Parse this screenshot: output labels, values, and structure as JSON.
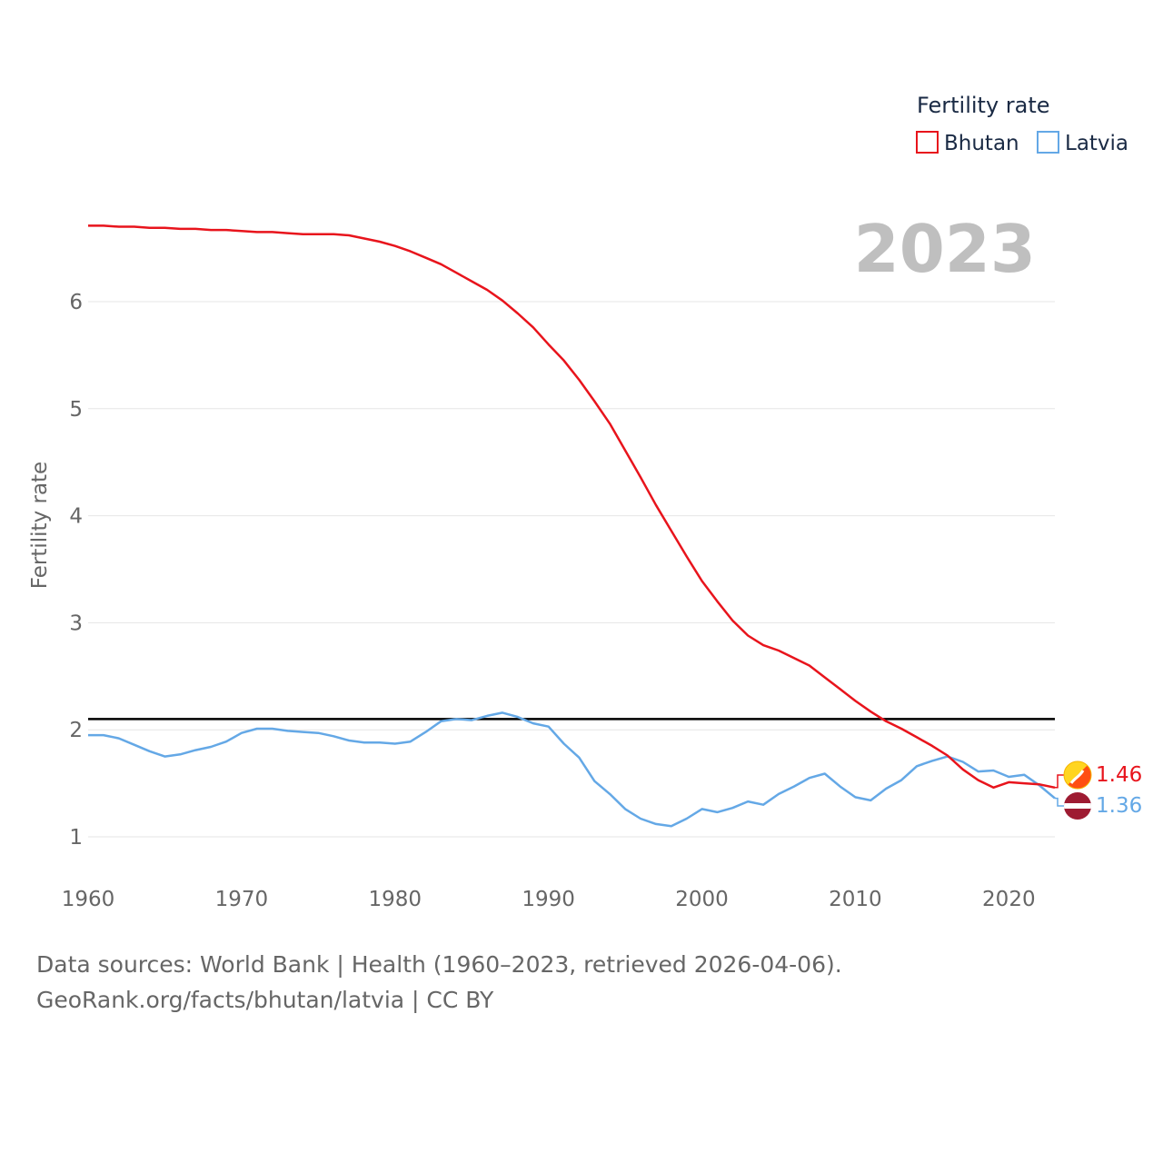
{
  "footer": {
    "line1": "Data sources: World Bank | Health (1960–2023, retrieved 2026-04-06).",
    "line2": "GeoRank.org/facts/bhutan/latvia | CC BY"
  },
  "colors": {
    "bhutan": "#e8141c",
    "latvia": "#64a8e6",
    "reference": "#000000",
    "grid": "#e6e6e6",
    "axis_text": "#666666",
    "legend_title": "#1a2a44",
    "year_watermark": "#bfbfbf"
  },
  "chart_data": {
    "type": "line",
    "title": "",
    "year_label": "2023",
    "xlabel": "",
    "ylabel": "Fertility rate",
    "xlim": [
      1960,
      2023
    ],
    "ylim": [
      0.5,
      7.2
    ],
    "x_ticks": [
      1960,
      1970,
      1980,
      1990,
      2000,
      2010,
      2020
    ],
    "y_ticks": [
      1,
      2,
      3,
      4,
      5,
      6
    ],
    "grid": true,
    "legend": {
      "title": "Fertility rate",
      "position": "top-right"
    },
    "reference_line": {
      "y": 2.1
    },
    "x": [
      1960,
      1961,
      1962,
      1963,
      1964,
      1965,
      1966,
      1967,
      1968,
      1969,
      1970,
      1971,
      1972,
      1973,
      1974,
      1975,
      1976,
      1977,
      1978,
      1979,
      1980,
      1981,
      1982,
      1983,
      1984,
      1985,
      1986,
      1987,
      1988,
      1989,
      1990,
      1991,
      1992,
      1993,
      1994,
      1995,
      1996,
      1997,
      1998,
      1999,
      2000,
      2001,
      2002,
      2003,
      2004,
      2005,
      2006,
      2007,
      2008,
      2009,
      2010,
      2011,
      2012,
      2013,
      2014,
      2015,
      2016,
      2017,
      2018,
      2019,
      2020,
      2021,
      2022,
      2023
    ],
    "series": [
      {
        "name": "Bhutan",
        "end_label": "1.46",
        "values": [
          6.71,
          6.71,
          6.7,
          6.7,
          6.69,
          6.69,
          6.68,
          6.68,
          6.67,
          6.67,
          6.66,
          6.65,
          6.65,
          6.64,
          6.63,
          6.63,
          6.63,
          6.62,
          6.59,
          6.56,
          6.52,
          6.47,
          6.41,
          6.35,
          6.27,
          6.19,
          6.11,
          6.01,
          5.89,
          5.76,
          5.6,
          5.45,
          5.27,
          5.07,
          4.86,
          4.61,
          4.36,
          4.1,
          3.86,
          3.62,
          3.39,
          3.2,
          3.02,
          2.88,
          2.79,
          2.74,
          2.67,
          2.6,
          2.49,
          2.38,
          2.27,
          2.17,
          2.08,
          2.01,
          1.93,
          1.85,
          1.76,
          1.63,
          1.53,
          1.46,
          1.51,
          1.5,
          1.49,
          1.46
        ]
      },
      {
        "name": "Latvia",
        "end_label": "1.36",
        "values": [
          1.95,
          1.95,
          1.92,
          1.86,
          1.8,
          1.75,
          1.77,
          1.81,
          1.84,
          1.89,
          1.97,
          2.01,
          2.01,
          1.99,
          1.98,
          1.97,
          1.94,
          1.9,
          1.88,
          1.88,
          1.87,
          1.89,
          1.98,
          2.08,
          2.1,
          2.09,
          2.13,
          2.16,
          2.12,
          2.06,
          2.03,
          1.87,
          1.74,
          1.52,
          1.4,
          1.26,
          1.17,
          1.12,
          1.1,
          1.17,
          1.26,
          1.23,
          1.27,
          1.33,
          1.3,
          1.4,
          1.47,
          1.55,
          1.59,
          1.47,
          1.37,
          1.34,
          1.45,
          1.53,
          1.66,
          1.71,
          1.75,
          1.7,
          1.61,
          1.62,
          1.56,
          1.58,
          1.48,
          1.36
        ]
      }
    ]
  }
}
